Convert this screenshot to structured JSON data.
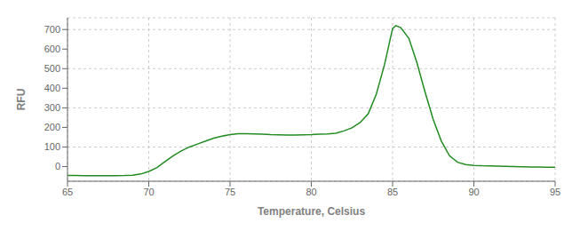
{
  "chart_data": {
    "type": "line",
    "xlabel": "Temperature, Celsius",
    "ylabel": "RFU",
    "color": "#228B22",
    "xlim": [
      65,
      95
    ],
    "ylim": [
      -75,
      760
    ],
    "xticks": [
      65,
      70,
      75,
      80,
      85,
      90,
      95
    ],
    "yticks": [
      0,
      100,
      200,
      300,
      400,
      500,
      600,
      700
    ],
    "grid": true,
    "x": [
      65.0,
      65.5,
      66.0,
      66.5,
      67.0,
      67.5,
      68.0,
      68.5,
      69.0,
      69.5,
      70.0,
      70.5,
      71.0,
      71.5,
      72.0,
      72.5,
      73.0,
      73.5,
      74.0,
      74.5,
      75.0,
      75.5,
      76.0,
      76.5,
      77.0,
      77.5,
      78.0,
      78.5,
      79.0,
      79.5,
      80.0,
      80.5,
      81.0,
      81.5,
      82.0,
      82.5,
      83.0,
      83.5,
      84.0,
      84.5,
      85.0,
      85.2,
      85.5,
      86.0,
      86.5,
      87.0,
      87.5,
      88.0,
      88.5,
      89.0,
      89.5,
      90.0,
      90.5,
      91.0,
      91.5,
      92.0,
      92.5,
      93.0,
      93.5,
      94.0,
      94.5,
      95.0
    ],
    "values": [
      -45,
      -46,
      -47,
      -47,
      -47,
      -47,
      -47,
      -46,
      -44,
      -38,
      -25,
      -5,
      25,
      55,
      80,
      100,
      115,
      130,
      145,
      155,
      163,
      168,
      168,
      167,
      165,
      163,
      162,
      161,
      161,
      162,
      163,
      165,
      167,
      170,
      182,
      198,
      225,
      270,
      370,
      520,
      705,
      720,
      710,
      655,
      530,
      380,
      240,
      130,
      55,
      22,
      10,
      6,
      4,
      3,
      2,
      1,
      0,
      -1,
      -2,
      -2,
      -3,
      -3
    ]
  }
}
